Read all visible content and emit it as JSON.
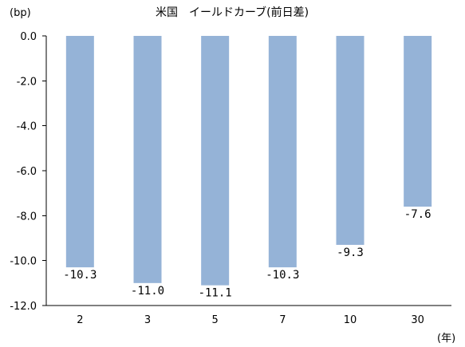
{
  "chart_data": {
    "type": "bar",
    "title": "米国　イールドカーブ(前日差)",
    "ylabel": "(bp)",
    "xlabel": "(年)",
    "categories": [
      "2",
      "3",
      "5",
      "7",
      "10",
      "30"
    ],
    "values": [
      -10.3,
      -11.0,
      -11.1,
      -10.3,
      -9.3,
      -7.6
    ],
    "value_labels": [
      "-10.3",
      "-11.0",
      "-11.1",
      "-10.3",
      "-9.3",
      "-7.6"
    ],
    "ylim": [
      -12.0,
      0.0
    ],
    "yticks": [
      0.0,
      -2.0,
      -4.0,
      -6.0,
      -8.0,
      -10.0,
      -12.0
    ],
    "ytick_labels": [
      "0.0",
      "-2.0",
      "-4.0",
      "-6.0",
      "-8.0",
      "-10.0",
      "-12.0"
    ],
    "bar_color": "#95b3d7",
    "grid": false,
    "legend": "none"
  }
}
